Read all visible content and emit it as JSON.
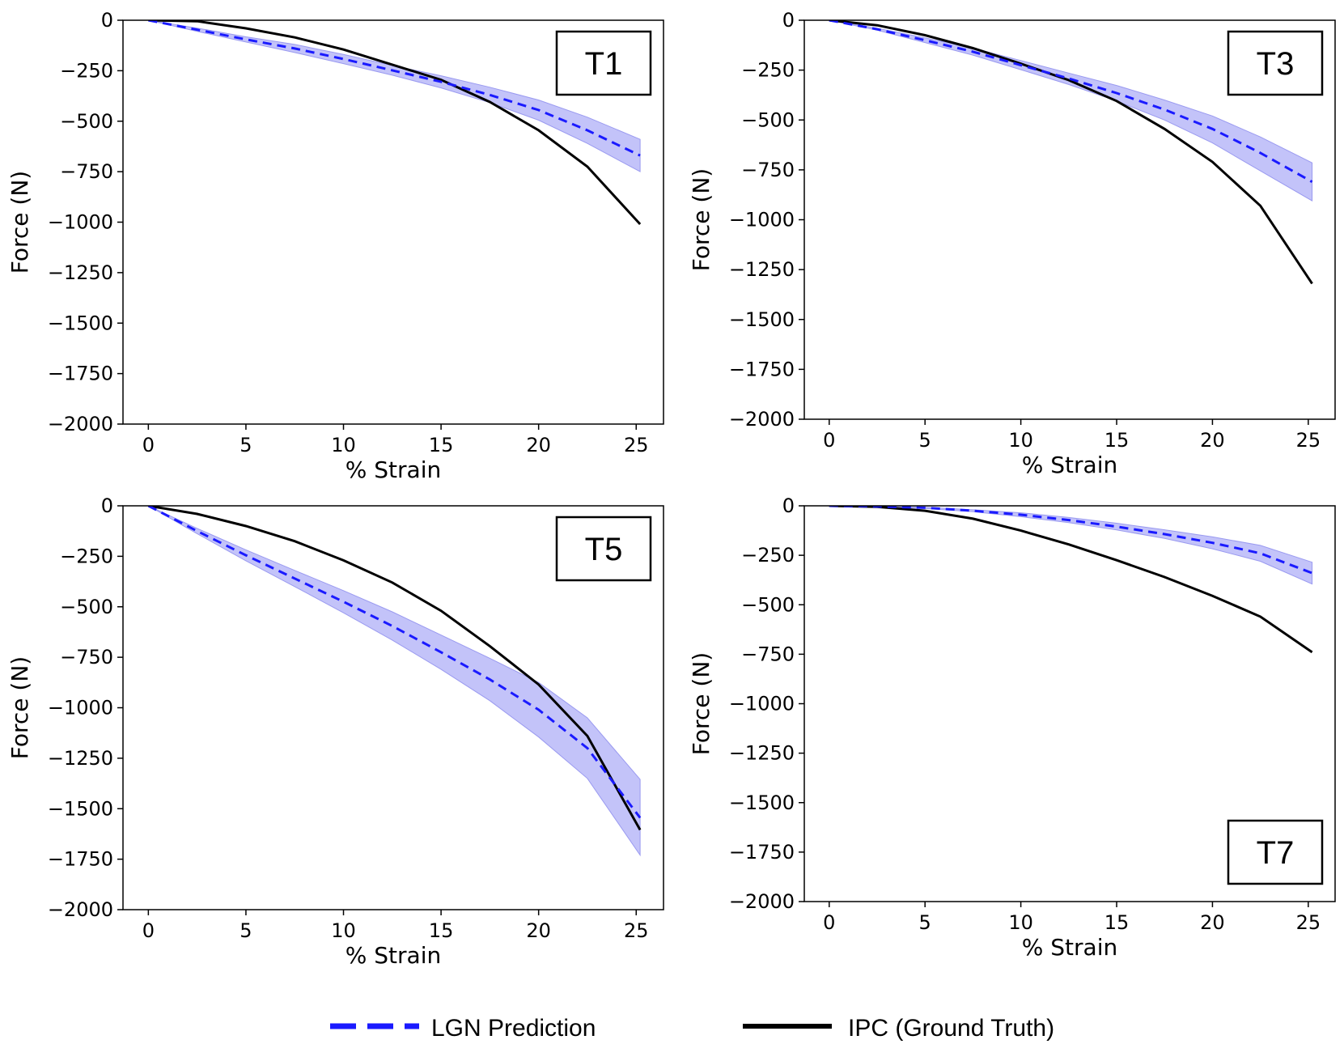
{
  "legend": {
    "prediction_label": "LGN Prediction",
    "ground_truth_label": "IPC (Ground Truth)"
  },
  "colors": {
    "prediction": "#1a1aff",
    "band": "#b8b8f8",
    "ground_truth": "#000000"
  },
  "chart_data": [
    {
      "type": "line",
      "panel_label": "T1",
      "label_position": "top-right",
      "xlabel": "% Strain",
      "ylabel": "Force (N)",
      "xlim": [
        -1.3,
        26.4
      ],
      "ylim": [
        -2000,
        0
      ],
      "xticks": [
        0,
        5,
        10,
        15,
        20,
        25
      ],
      "yticks": [
        0,
        -250,
        -500,
        -750,
        -1000,
        -1250,
        -1500,
        -1750,
        -2000
      ],
      "x": [
        0,
        2.5,
        5,
        7.5,
        10,
        12.5,
        15,
        17.5,
        20,
        22.5,
        25.2
      ],
      "series": [
        {
          "name": "LGN Prediction",
          "style": "dashed",
          "values": [
            0,
            -47,
            -95,
            -140,
            -192,
            -248,
            -305,
            -370,
            -445,
            -545,
            -670
          ],
          "lower": [
            0,
            -55,
            -108,
            -160,
            -215,
            -272,
            -335,
            -408,
            -495,
            -610,
            -750
          ],
          "upper": [
            0,
            -39,
            -82,
            -120,
            -169,
            -224,
            -275,
            -332,
            -395,
            -480,
            -590
          ]
        },
        {
          "name": "IPC (Ground Truth)",
          "style": "solid",
          "values": [
            0,
            -5,
            -40,
            -85,
            -145,
            -220,
            -295,
            -405,
            -545,
            -725,
            -1010
          ]
        }
      ]
    },
    {
      "type": "line",
      "panel_label": "T3",
      "label_position": "top-right",
      "xlabel": "% Strain",
      "ylabel": "Force (N)",
      "xlim": [
        -1.3,
        26.4
      ],
      "ylim": [
        -2000,
        0
      ],
      "xticks": [
        0,
        5,
        10,
        15,
        20,
        25
      ],
      "yticks": [
        0,
        -250,
        -500,
        -750,
        -1000,
        -1250,
        -1500,
        -1750,
        -2000
      ],
      "x": [
        0,
        2.5,
        5,
        7.5,
        10,
        12.5,
        15,
        17.5,
        20,
        22.5,
        25.2
      ],
      "series": [
        {
          "name": "LGN Prediction",
          "style": "dashed",
          "values": [
            0,
            -45,
            -100,
            -158,
            -225,
            -292,
            -365,
            -448,
            -545,
            -665,
            -810
          ],
          "lower": [
            0,
            -50,
            -112,
            -175,
            -248,
            -322,
            -405,
            -500,
            -615,
            -755,
            -905
          ],
          "upper": [
            0,
            -40,
            -88,
            -140,
            -202,
            -265,
            -327,
            -400,
            -480,
            -585,
            -715
          ]
        },
        {
          "name": "IPC (Ground Truth)",
          "style": "solid",
          "values": [
            0,
            -25,
            -75,
            -140,
            -218,
            -300,
            -405,
            -545,
            -710,
            -930,
            -1320
          ]
        }
      ]
    },
    {
      "type": "line",
      "panel_label": "T5",
      "label_position": "top-right",
      "xlabel": "% Strain",
      "ylabel": "Force (N)",
      "xlim": [
        -1.3,
        26.4
      ],
      "ylim": [
        -2000,
        0
      ],
      "xticks": [
        0,
        5,
        10,
        15,
        20,
        25
      ],
      "yticks": [
        0,
        -250,
        -500,
        -750,
        -1000,
        -1250,
        -1500,
        -1750,
        -2000
      ],
      "x": [
        0,
        2.5,
        5,
        7.5,
        10,
        12.5,
        15,
        17.5,
        20,
        22.5,
        25.2
      ],
      "series": [
        {
          "name": "LGN Prediction",
          "style": "dashed",
          "values": [
            0,
            -125,
            -245,
            -360,
            -475,
            -595,
            -725,
            -860,
            -1010,
            -1200,
            -1545
          ],
          "lower": [
            0,
            -138,
            -272,
            -400,
            -530,
            -665,
            -810,
            -965,
            -1145,
            -1350,
            -1730
          ],
          "upper": [
            0,
            -112,
            -218,
            -320,
            -420,
            -525,
            -640,
            -755,
            -875,
            -1050,
            -1355
          ]
        },
        {
          "name": "IPC (Ground Truth)",
          "style": "solid",
          "values": [
            0,
            -40,
            -100,
            -175,
            -270,
            -380,
            -520,
            -695,
            -885,
            -1140,
            -1605
          ]
        }
      ]
    },
    {
      "type": "line",
      "panel_label": "T7",
      "label_position": "bottom-right",
      "xlabel": "% Strain",
      "ylabel": "Force (N)",
      "xlim": [
        -1.3,
        26.4
      ],
      "ylim": [
        -2000,
        0
      ],
      "xticks": [
        0,
        5,
        10,
        15,
        20,
        25
      ],
      "yticks": [
        0,
        -250,
        -500,
        -750,
        -1000,
        -1250,
        -1500,
        -1750,
        -2000
      ],
      "x": [
        0,
        2.5,
        5,
        7.5,
        10,
        12.5,
        15,
        17.5,
        20,
        22.5,
        25.2
      ],
      "series": [
        {
          "name": "LGN Prediction",
          "style": "dashed",
          "values": [
            0,
            -3,
            -10,
            -25,
            -45,
            -72,
            -105,
            -143,
            -187,
            -240,
            -340
          ],
          "lower": [
            0,
            -4,
            -13,
            -30,
            -55,
            -85,
            -122,
            -165,
            -217,
            -280,
            -395
          ],
          "upper": [
            0,
            -2,
            -7,
            -20,
            -35,
            -59,
            -88,
            -121,
            -157,
            -200,
            -285
          ]
        },
        {
          "name": "IPC (Ground Truth)",
          "style": "solid",
          "values": [
            0,
            -5,
            -25,
            -65,
            -125,
            -195,
            -275,
            -360,
            -455,
            -560,
            -740
          ]
        }
      ]
    }
  ]
}
